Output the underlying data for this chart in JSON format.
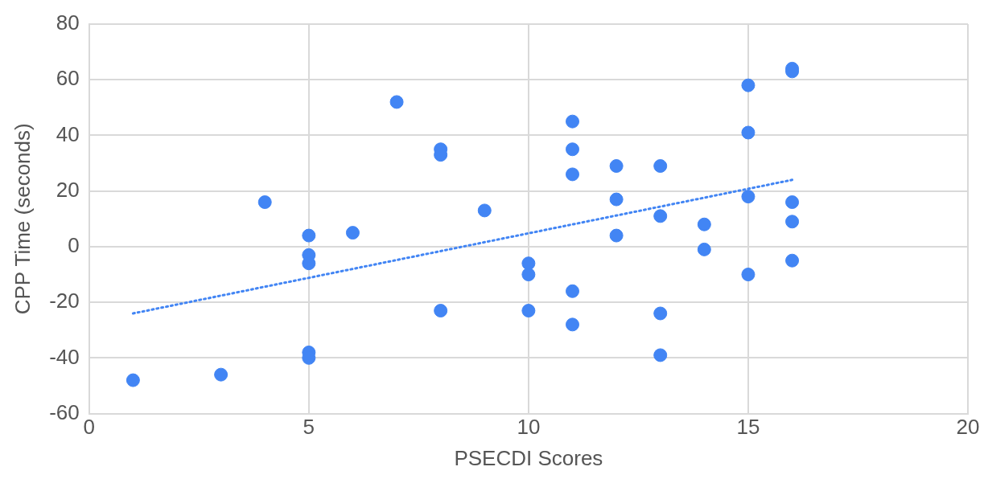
{
  "chart_data": {
    "type": "scatter",
    "xlabel": "PSECDI Scores",
    "ylabel": "CPP Time (seconds)",
    "xlim": [
      0,
      20
    ],
    "xticks": [
      0,
      5,
      10,
      15,
      20
    ],
    "ylim": [
      -60,
      80
    ],
    "yticks": [
      -60,
      -40,
      -20,
      0,
      20,
      40,
      60,
      80
    ],
    "grid": true,
    "legend": false,
    "marker": "circle",
    "series": [
      {
        "type": "scatter",
        "color": "#4285f4",
        "x": [
          1,
          3,
          4,
          5,
          5,
          5,
          5,
          5,
          6,
          7,
          8,
          8,
          8,
          9,
          10,
          10,
          10,
          11,
          11,
          11,
          11,
          11,
          12,
          12,
          12,
          13,
          13,
          13,
          13,
          14,
          14,
          15,
          15,
          15,
          15,
          16,
          16,
          16,
          16,
          16
        ],
        "values": [
          -48,
          -46,
          16,
          4,
          -3,
          -6,
          -38,
          -40,
          5,
          52,
          35,
          33,
          -23,
          13,
          -6,
          -10,
          -23,
          45,
          35,
          26,
          -16,
          -28,
          29,
          17,
          4,
          29,
          11,
          -24,
          -39,
          8,
          -1,
          58,
          41,
          18,
          -10,
          64,
          63,
          16,
          9,
          -5
        ]
      },
      {
        "type": "line",
        "color": "#4285f4",
        "line_style": "dotted",
        "marker": "none",
        "x": [
          1,
          16
        ],
        "values": [
          -24,
          24
        ]
      }
    ]
  }
}
